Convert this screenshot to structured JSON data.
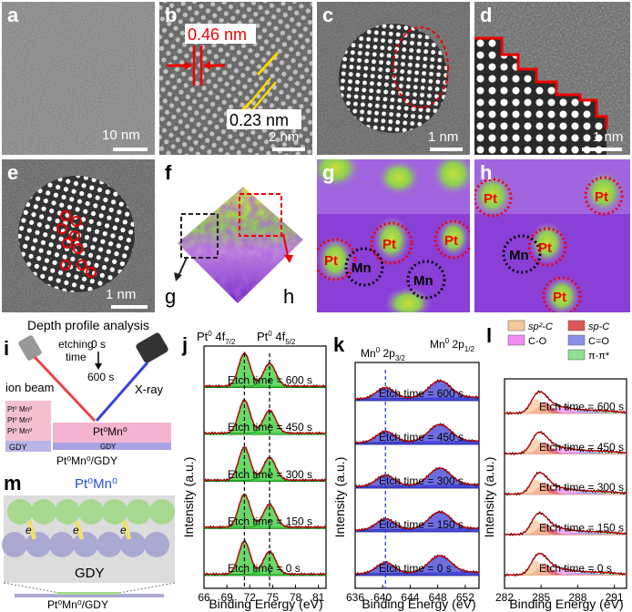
{
  "panels": {
    "a": {
      "label": "a",
      "scale": "10 nm"
    },
    "b": {
      "label": "b",
      "scale": "2 nm",
      "d1": "0.46 nm",
      "d2": "0.23 nm"
    },
    "c": {
      "label": "c",
      "scale": "1 nm"
    },
    "d": {
      "label": "d",
      "scale": "1 nm"
    },
    "e": {
      "label": "e",
      "scale": "1 nm"
    },
    "f": {
      "label": "f",
      "arrow_g": "g",
      "arrow_h": "h"
    },
    "g": {
      "label": "g",
      "atoms": [
        "Pt",
        "Pt",
        "Pt",
        "Mn",
        "Mn"
      ]
    },
    "h": {
      "label": "h",
      "atoms": [
        "Pt",
        "Pt",
        "Pt",
        "Pt",
        "Mn"
      ]
    },
    "i": {
      "label": "i",
      "title": "Depth profile analysis",
      "etching": "etching",
      "time": "time",
      "t0": "0 s",
      "t600": "600 s",
      "ion_beam": "ion beam",
      "xray": "X-ray",
      "layer1": "Pt⁰ Mn⁰",
      "layer2": "Pt⁰ Mn⁰",
      "layer3": "Pt⁰ Mn⁰",
      "gdy": "GDY",
      "stack": "Pt⁰Mn⁰",
      "stack_gdy": "GDY",
      "caption": "Pt⁰Mn⁰/GDY"
    },
    "j": {
      "label": "j"
    },
    "k": {
      "label": "k"
    },
    "l": {
      "label": "l"
    },
    "m": {
      "label": "m",
      "title": "Pt⁰Mn⁰",
      "gdy": "GDY",
      "caption": "Pt⁰Mn⁰/GDY",
      "electron": "e"
    }
  },
  "chart_data": [
    {
      "type": "line",
      "panel": "j",
      "xlabel": "Binding Energy (eV)",
      "ylabel": "Intensity (a.u.)",
      "xlim": [
        66,
        82
      ],
      "xticks": [
        66,
        69,
        72,
        75,
        78,
        81
      ],
      "peak_labels": [
        "Pt⁰ 4f7/2",
        "Pt⁰ 4f5/2"
      ],
      "peaks": [
        71.3,
        74.6
      ],
      "series": [
        {
          "name": "Etch time = 600 s"
        },
        {
          "name": "Etch time = 450 s"
        },
        {
          "name": "Etch time = 300 s"
        },
        {
          "name": "Etch time = 150 s"
        },
        {
          "name": "Etch time = 0 s"
        }
      ]
    },
    {
      "type": "line",
      "panel": "k",
      "xlabel": "Binding Energy (eV)",
      "ylabel": "Intensity (a.u.)",
      "xlim": [
        636,
        654
      ],
      "xticks": [
        636,
        640,
        644,
        648,
        652
      ],
      "peak_labels": [
        "Mn⁰ 2p3/2",
        "Mn⁰ 2p1/2"
      ],
      "peaks": [
        640.4,
        648.3
      ],
      "series": [
        {
          "name": "Etch time = 600 s"
        },
        {
          "name": "Etch time = 450 s"
        },
        {
          "name": "Etch time = 300 s"
        },
        {
          "name": "Etch time = 150 s"
        },
        {
          "name": "Etch time = 0 s"
        }
      ]
    },
    {
      "type": "line",
      "panel": "l",
      "xlabel": "Binding Energy (eV)",
      "ylabel": "Intensity (a.u.)",
      "xlim": [
        282,
        292
      ],
      "xticks": [
        282,
        285,
        288,
        291
      ],
      "legend": [
        "sp²-C",
        "sp-C",
        "C-O",
        "C=O",
        "π-π*"
      ],
      "legend_colors": [
        "#f5c89a",
        "#e05555",
        "#f08cf0",
        "#8a90e8",
        "#8fe08f"
      ],
      "peaks": [
        284.6,
        285.3,
        286.5,
        288.5,
        290.5
      ],
      "series": [
        {
          "name": "Etch time = 600 s"
        },
        {
          "name": "Etch time = 450 s"
        },
        {
          "name": "Etch time = 300 s"
        },
        {
          "name": "Etch time = 150 s"
        },
        {
          "name": "Etch time = 0 s"
        }
      ]
    }
  ]
}
